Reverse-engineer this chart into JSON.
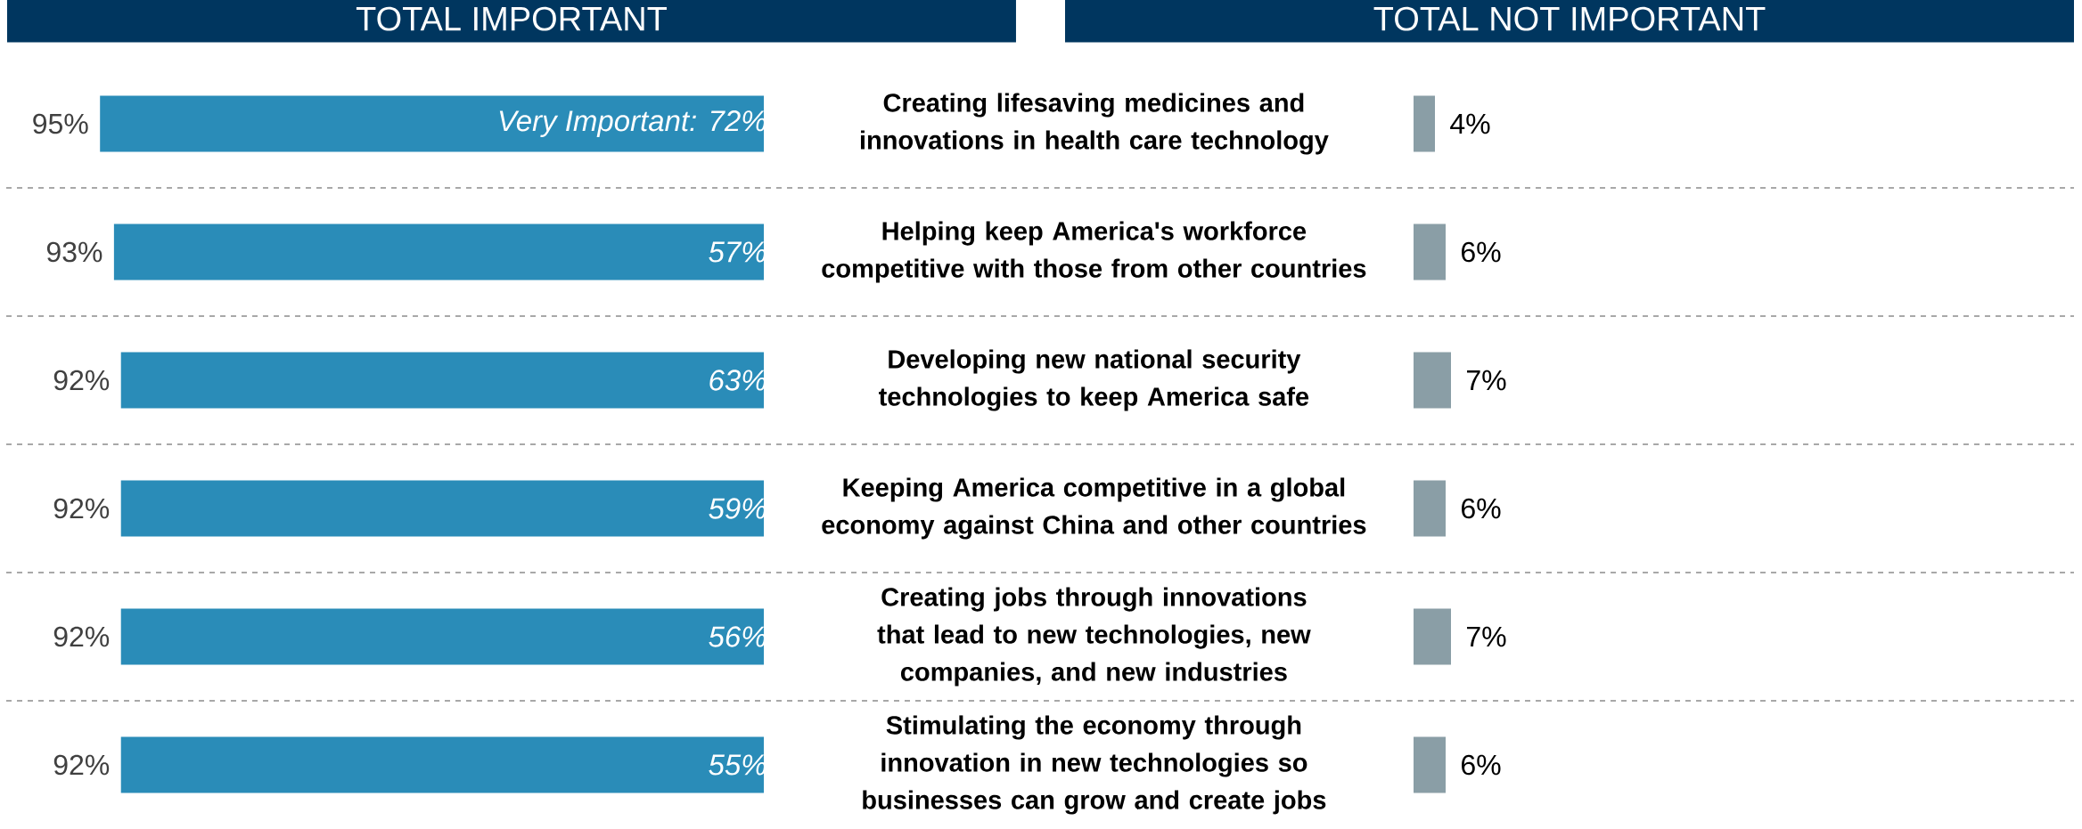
{
  "chart_data": [
    {
      "type": "bar",
      "orientation": "horizontal",
      "title": "TOTAL IMPORTANT",
      "categories": [
        "Creating lifesaving medicines and innovations in health care technology",
        "Helping keep America's workforce competitive with those from other countries",
        "Developing new national security technologies to keep America safe",
        "Keeping America competitive in a global economy against China and other countries",
        "Creating jobs through innovations that lead to new technologies, new companies, and new industries",
        "Stimulating the economy through innovation in new technologies so businesses can grow and create jobs"
      ],
      "values": [
        95,
        93,
        92,
        92,
        92,
        92
      ],
      "value_labels": [
        "95%",
        "93%",
        "92%",
        "92%",
        "92%",
        "92%"
      ],
      "color": "#2a8cb8",
      "tick_labels": "y",
      "annotations": [
        "Very Important: 72%",
        "57%",
        "63%",
        "59%",
        "56%",
        "55%"
      ]
    },
    {
      "type": "bar",
      "orientation": "horizontal",
      "title": "TOTAL NOT IMPORTANT",
      "categories": [
        null,
        null,
        null,
        null,
        null,
        null
      ],
      "values": [
        4,
        6,
        7,
        6,
        7,
        6
      ],
      "value_labels": [
        "4%",
        "6%",
        "7%",
        "6%",
        "7%",
        "6%"
      ],
      "color": "#8a9ea6",
      "tick_labels": false
    }
  ]
}
